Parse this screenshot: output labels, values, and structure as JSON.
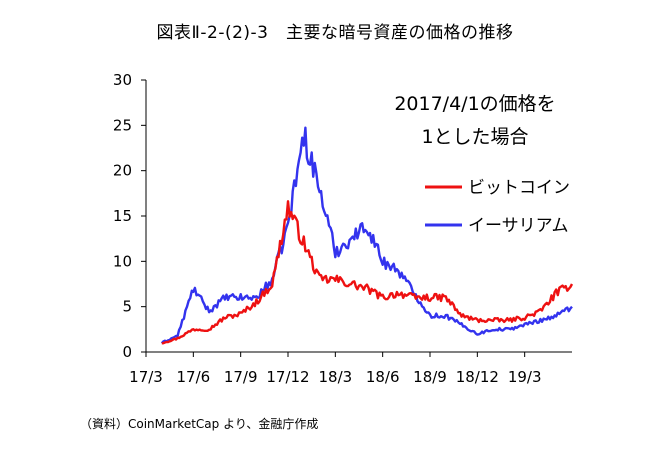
{
  "title": "図表Ⅱ-2-(2)-3　主要な暗号資産の価格の推移",
  "source": "（資料）CoinMarketCap より、金融庁作成",
  "chart_data": {
    "type": "line",
    "title": "図表Ⅱ-2-(2)-3　主要な暗号資産の価格の推移",
    "xlabel": "",
    "ylabel": "",
    "ylim": [
      0,
      30
    ],
    "yticks": [
      0,
      5,
      10,
      15,
      20,
      25,
      30
    ],
    "xticks": [
      "17/3",
      "17/6",
      "17/9",
      "17/12",
      "18/3",
      "18/6",
      "18/9",
      "18/12",
      "19/3"
    ],
    "annotation": [
      "2017/4/1の価格を",
      "1とした場合"
    ],
    "legend_position": "upper-right",
    "grid": false,
    "series": [
      {
        "name": "ビットコイン",
        "color": "#ee1111",
        "x": [
          "2017-04",
          "2017-05",
          "2017-06",
          "2017-07",
          "2017-08",
          "2017-09",
          "2017-10",
          "2017-11",
          "2017-12",
          "2018-01",
          "2018-02",
          "2018-03",
          "2018-04",
          "2018-05",
          "2018-06",
          "2018-07",
          "2018-08",
          "2018-09",
          "2018-10",
          "2018-11",
          "2018-12",
          "2019-01",
          "2019-02",
          "2019-03",
          "2019-04",
          "2019-05",
          "2019-06"
        ],
        "values": [
          1.0,
          1.5,
          2.5,
          2.5,
          3.8,
          4.2,
          5.5,
          7.5,
          16.0,
          12.0,
          8.0,
          8.0,
          7.5,
          7.0,
          6.0,
          6.5,
          6.0,
          6.0,
          6.0,
          4.0,
          3.5,
          3.5,
          3.5,
          3.8,
          4.5,
          6.5,
          7.5
        ]
      },
      {
        "name": "イーサリアム",
        "color": "#3333ee",
        "x": [
          "2017-04",
          "2017-05",
          "2017-06",
          "2017-07",
          "2017-08",
          "2017-09",
          "2017-10",
          "2017-11",
          "2017-12",
          "2018-01",
          "2018-02",
          "2018-03",
          "2018-04",
          "2018-05",
          "2018-06",
          "2018-07",
          "2018-08",
          "2018-09",
          "2018-10",
          "2018-11",
          "2018-12",
          "2019-01",
          "2019-02",
          "2019-03",
          "2019-04",
          "2019-05",
          "2019-06"
        ],
        "values": [
          1.0,
          1.8,
          7.0,
          4.5,
          6.0,
          6.0,
          6.0,
          8.0,
          14.0,
          24.0,
          18.0,
          11.0,
          12.5,
          14.0,
          10.0,
          9.0,
          6.5,
          4.0,
          4.0,
          3.0,
          2.0,
          2.5,
          2.5,
          3.0,
          3.5,
          4.0,
          5.0
        ]
      }
    ]
  }
}
